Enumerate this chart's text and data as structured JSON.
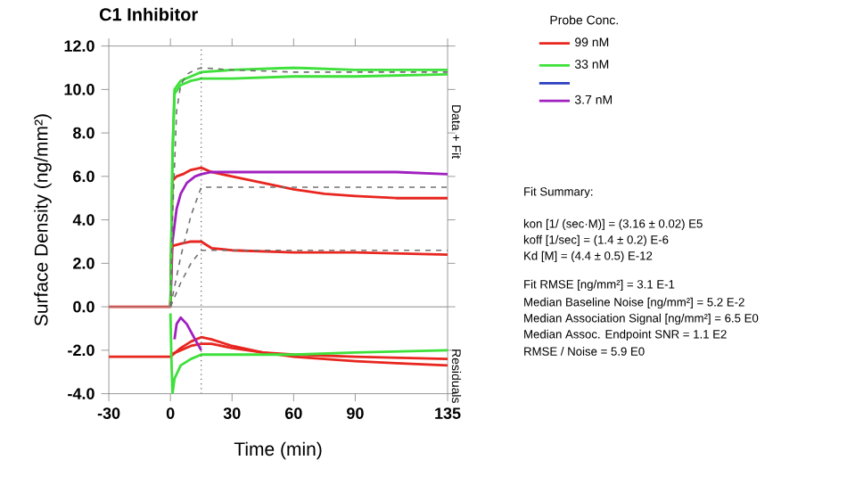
{
  "chart_data": {
    "type": "line",
    "title": "C1 Inhibitor",
    "xlabel": "Time (min)",
    "ylabel": "Surface Density (ng/mm²)",
    "legend_title": "Probe Conc.",
    "legend": "right",
    "marker": "none",
    "xlim": [
      -30,
      135
    ],
    "ylim": [
      -4,
      12
    ],
    "xticks": [
      -30,
      0,
      30,
      60,
      90,
      135
    ],
    "yticks": [
      {
        "value": -4,
        "label": "-4.0"
      },
      {
        "value": -2,
        "label": "-2.0"
      },
      {
        "value": 0,
        "label": "0.0"
      },
      {
        "value": 2,
        "label": "2.0"
      },
      {
        "value": 4,
        "label": "4.0"
      },
      {
        "value": 6,
        "label": "6.0"
      },
      {
        "value": 8,
        "label": "8.0"
      },
      {
        "value": 10,
        "label": "10.0"
      },
      {
        "value": 12,
        "label": "12.0"
      }
    ],
    "ref_lines": [
      {
        "axis": "x",
        "value": 15,
        "color": "#555555",
        "line_style": "dotted"
      },
      {
        "axis": "y",
        "value": 0,
        "color": "#999999",
        "line_style": "solid"
      }
    ],
    "series": [
      {
        "name": "99 nM",
        "color": "#e8261f",
        "line_style": "solid",
        "x": [
          -30,
          -15,
          0,
          0.5,
          1,
          3,
          6,
          10,
          15,
          20,
          30,
          45,
          60,
          75,
          90,
          110,
          135
        ],
        "values": [
          0,
          0,
          0,
          3,
          5.8,
          6.0,
          6.1,
          6.3,
          6.4,
          6.2,
          6.0,
          5.7,
          5.4,
          5.2,
          5.1,
          5.0,
          5.0
        ]
      },
      {
        "name": "33 nM",
        "color": "#3ee03a",
        "line_style": "solid",
        "x": [
          0,
          1,
          2,
          5,
          10,
          15,
          30,
          60,
          90,
          110,
          135
        ],
        "values": [
          0,
          7,
          10,
          10.4,
          10.6,
          10.8,
          10.9,
          11.0,
          10.9,
          10.9,
          10.9
        ]
      },
      {
        "color": "#2a3fc0",
        "line_style": "solid"
      },
      {
        "name": "3.7 nM",
        "color": "#a020c0",
        "line_style": "solid",
        "x": [
          0,
          1,
          3,
          5,
          8,
          12,
          15,
          20,
          40,
          60,
          90,
          110,
          135
        ],
        "values": [
          0,
          3,
          4.5,
          5.2,
          5.7,
          6.0,
          6.1,
          6.2,
          6.2,
          6.2,
          6.2,
          6.2,
          6.1
        ]
      },
      {
        "color": "#e8261f",
        "line_style": "solid",
        "x": [
          0,
          0.5,
          1,
          5,
          10,
          15,
          20,
          30,
          60,
          90,
          135
        ],
        "values": [
          0,
          2.5,
          2.8,
          2.9,
          3.0,
          3.0,
          2.7,
          2.6,
          2.5,
          2.5,
          2.4
        ]
      },
      {
        "color": "#3ee03a",
        "line_style": "solid",
        "x": [
          0,
          1,
          2,
          5,
          10,
          15,
          30,
          60,
          90,
          135
        ],
        "values": [
          0,
          7,
          9.8,
          10.2,
          10.4,
          10.5,
          10.5,
          10.6,
          10.6,
          10.7
        ]
      },
      {
        "color": "#707070",
        "line_style": "dashed",
        "x": [
          0,
          1,
          3,
          5,
          8,
          12,
          15,
          30,
          60,
          90,
          135
        ],
        "values": [
          0,
          4,
          9,
          10.2,
          10.7,
          10.9,
          11.0,
          10.9,
          10.8,
          10.8,
          10.8
        ]
      },
      {
        "color": "#707070",
        "line_style": "dashed",
        "x": [
          0,
          5,
          10,
          15,
          30,
          60,
          90,
          135
        ],
        "values": [
          0,
          2.3,
          4.2,
          5.5,
          5.5,
          5.5,
          5.5,
          5.5
        ]
      },
      {
        "color": "#707070",
        "line_style": "dashed",
        "x": [
          0,
          5,
          10,
          15,
          30,
          60,
          90,
          135
        ],
        "values": [
          0,
          1.1,
          2.0,
          2.6,
          2.6,
          2.6,
          2.6,
          2.6
        ]
      },
      {
        "color": "#e8261f",
        "line_style": "solid",
        "x": [
          -30,
          -15,
          0,
          5,
          10,
          15,
          20,
          30,
          45,
          60,
          75,
          90,
          110,
          135
        ],
        "values": [
          -2.3,
          -2.3,
          -2.3,
          -1.9,
          -1.6,
          -1.4,
          -1.5,
          -1.8,
          -2.1,
          -2.3,
          -2.4,
          -2.5,
          -2.6,
          -2.7
        ]
      },
      {
        "color": "#e8261f",
        "line_style": "solid",
        "x": [
          0,
          5,
          10,
          15,
          20,
          30,
          45,
          60,
          90,
          135
        ],
        "values": [
          -2.2,
          -2.0,
          -1.8,
          -1.7,
          -1.7,
          -1.9,
          -2.1,
          -2.2,
          -2.3,
          -2.4
        ]
      },
      {
        "color": "#3ee03a",
        "line_style": "solid",
        "x": [
          0,
          0.5,
          1,
          2,
          5,
          10,
          15,
          30,
          60,
          90,
          135
        ],
        "values": [
          -0.3,
          -2.5,
          -4.0,
          -3.3,
          -2.7,
          -2.4,
          -2.2,
          -2.2,
          -2.2,
          -2.1,
          -2.0
        ]
      },
      {
        "color": "#a020c0",
        "line_style": "solid",
        "x": [
          2,
          3,
          5,
          8,
          12,
          15
        ],
        "values": [
          -1.5,
          -0.8,
          -0.5,
          -0.8,
          -1.5,
          -2.0
        ]
      }
    ],
    "annotations": [
      "Data + Fit",
      "Residuals",
      "Fit Summary:",
      "kon  [1/ (sec·M)]  =  (3.16 ± 0.02) E5",
      "koff  [1/sec]  =  (1.4 ± 0.2) E-6",
      "Kd  [M]  =  (4.4 ± 0.5) E-12",
      "Fit RMSE [ng/mm²]  =  3.1 E-1",
      "Median Baseline Noise [ng/mm²]  =  5.2 E-2",
      "Median Association Signal [ng/mm²]  =  6.5 E0",
      "Median Assoc. Endpoint SNR  =  1.1 E2",
      "RMSE / Noise  =  5.9 E0"
    ]
  }
}
